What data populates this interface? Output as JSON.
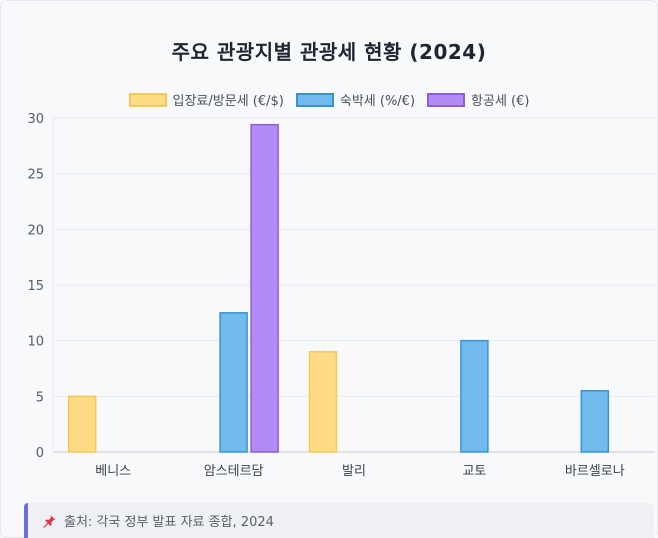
{
  "chart_data": {
    "type": "bar",
    "title": "주요 관광지별 관광세 현황 (2024)",
    "categories": [
      "베니스",
      "암스테르담",
      "발리",
      "교토",
      "바르셀로나"
    ],
    "series": [
      {
        "name": "입장료/방문세 (€/$)",
        "color": "#fddc85",
        "border": "#f5c85a",
        "values": [
          5,
          0,
          9,
          0,
          0
        ]
      },
      {
        "name": "숙박세 (%/€)",
        "color": "#72bbef",
        "border": "#3a94cc",
        "values": [
          0,
          12.5,
          0,
          10,
          5.5
        ]
      },
      {
        "name": "항공세 (€)",
        "color": "#b48af8",
        "border": "#8b5fd6",
        "values": [
          0,
          29.4,
          0,
          0,
          0
        ]
      }
    ],
    "ylim": [
      0,
      30
    ],
    "yticks": [
      0,
      5,
      10,
      15,
      20,
      25,
      30
    ],
    "xlabel": "",
    "ylabel": "",
    "legend_position": "top-center",
    "grid": true
  },
  "source": {
    "icon": "pushpin-icon",
    "text": "출처: 각국 정부 발표 자료 종합, 2024"
  }
}
